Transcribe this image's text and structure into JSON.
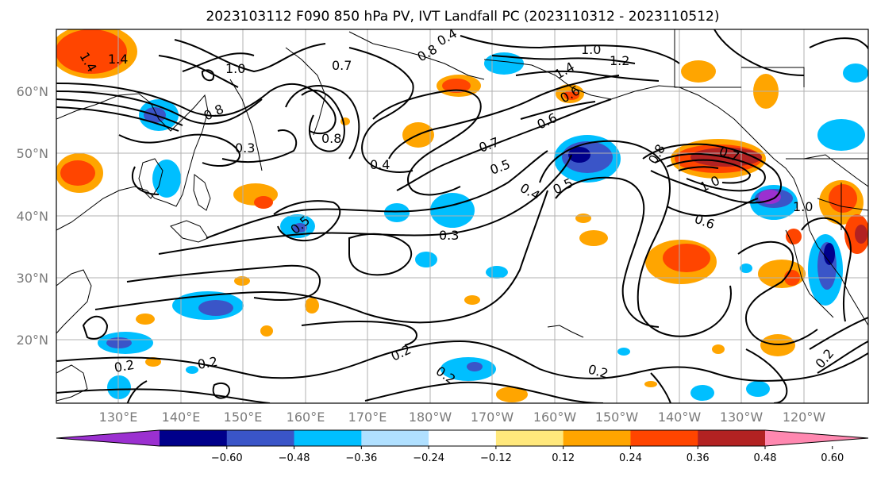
{
  "title": "2023103112 F090 850 hPa PV, IVT Landfall PC (2023110312 - 2023110512)",
  "lat_labels": [
    "60°N",
    "50°N",
    "40°N",
    "30°N",
    "20°N"
  ],
  "lon_labels": [
    "130°E",
    "140°E",
    "150°E",
    "160°E",
    "170°E",
    "180°W",
    "170°W",
    "160°W",
    "150°W",
    "140°W",
    "130°W",
    "120°W"
  ],
  "contour_labels": [
    {
      "text": "1.4"
    },
    {
      "text": "1.4"
    },
    {
      "text": "1.0"
    },
    {
      "text": "0.7"
    },
    {
      "text": "0.4"
    },
    {
      "text": "0.8"
    },
    {
      "text": "1.0"
    },
    {
      "text": "1.2"
    },
    {
      "text": "1.4"
    },
    {
      "text": "0.6"
    },
    {
      "text": "0.8"
    },
    {
      "text": "0.3"
    },
    {
      "text": "0.8"
    },
    {
      "text": "0.4"
    },
    {
      "text": "0.7"
    },
    {
      "text": "0.5"
    },
    {
      "text": "0.6"
    },
    {
      "text": "0.5"
    },
    {
      "text": "0.4"
    },
    {
      "text": "0.3"
    },
    {
      "text": "0.2"
    },
    {
      "text": "0.2"
    },
    {
      "text": "0.2"
    },
    {
      "text": "0.2"
    },
    {
      "text": "0.2"
    },
    {
      "text": "1.0"
    },
    {
      "text": "0.8"
    },
    {
      "text": "0.6"
    },
    {
      "text": "0.2"
    },
    {
      "text": "0.5"
    },
    {
      "text": "1.0"
    },
    {
      "text": "0.7"
    }
  ],
  "colorbar": {
    "ticks": [
      "−0.60",
      "−0.48",
      "−0.36",
      "−0.24",
      "−0.12",
      "0.12",
      "0.24",
      "0.36",
      "0.48",
      "0.60"
    ],
    "colors": [
      "#9b30d0",
      "#00008b",
      "#3a55c8",
      "#00bfff",
      "#b0e0ff",
      "#ffffff",
      "#ffe87c",
      "#ffa500",
      "#ff4500",
      "#b22222",
      "#ff88b0"
    ]
  }
}
